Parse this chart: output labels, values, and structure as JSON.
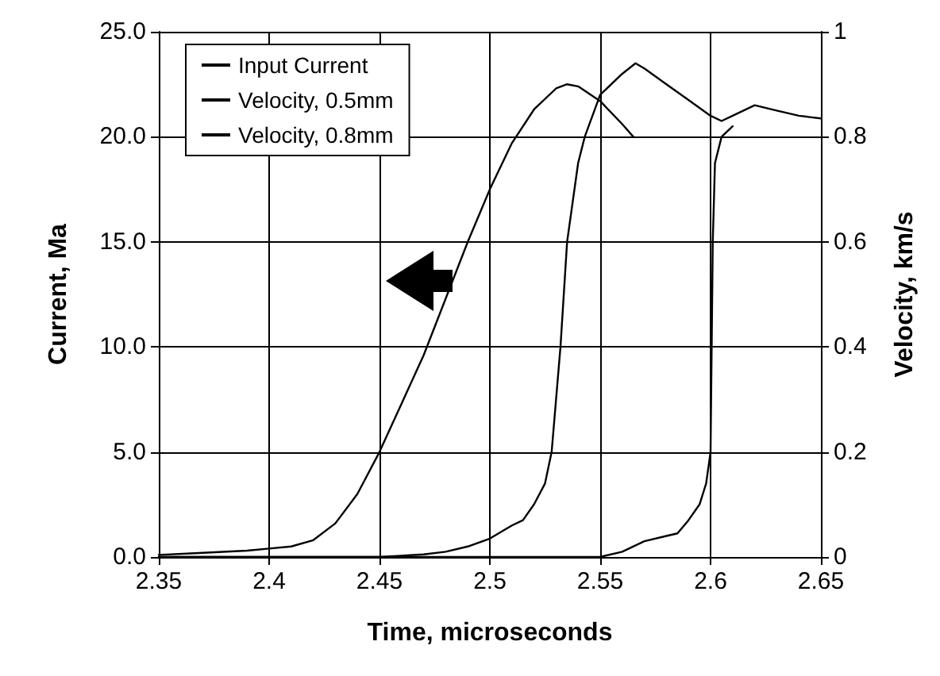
{
  "chart_data": {
    "type": "line",
    "xlabel": "Time, microseconds",
    "ylabel": "Current, Ma",
    "y2label": "Velocity, km/s",
    "series": [
      {
        "name": "Input Current",
        "color": "#000000",
        "x": [
          2.35,
          2.37,
          2.39,
          2.4,
          2.41,
          2.42,
          2.43,
          2.44,
          2.45,
          2.46,
          2.47,
          2.48,
          2.49,
          2.5,
          2.51,
          2.52,
          2.53,
          2.535,
          2.54,
          2.55,
          2.56,
          2.565
        ],
        "values": [
          0.1,
          0.2,
          0.3,
          0.4,
          0.5,
          0.8,
          1.6,
          3.0,
          5.0,
          7.3,
          9.6,
          12.3,
          15.0,
          17.5,
          19.7,
          21.3,
          22.3,
          22.5,
          22.4,
          21.7,
          20.6,
          20.0
        ]
      },
      {
        "name": "Velocity, 0.5mm",
        "color": "#000000",
        "axis": "y2",
        "x": [
          2.35,
          2.4,
          2.45,
          2.47,
          2.48,
          2.49,
          2.5,
          2.51,
          2.515,
          2.52,
          2.525,
          2.528,
          2.53,
          2.532,
          2.535,
          2.54,
          2.543,
          2.55,
          2.56,
          2.566,
          2.57,
          2.58,
          2.59,
          2.6,
          2.605,
          2.61,
          2.62,
          2.63,
          2.64,
          2.65
        ],
        "values": [
          0.0,
          0.0,
          0.0,
          0.005,
          0.01,
          0.02,
          0.035,
          0.06,
          0.07,
          0.1,
          0.14,
          0.2,
          0.3,
          0.4,
          0.6,
          0.75,
          0.8,
          0.88,
          0.92,
          0.94,
          0.93,
          0.9,
          0.87,
          0.84,
          0.83,
          0.84,
          0.86,
          0.85,
          0.84,
          0.835
        ]
      },
      {
        "name": "Velocity, 0.8mm",
        "color": "#000000",
        "axis": "y2",
        "x": [
          2.35,
          2.5,
          2.54,
          2.55,
          2.56,
          2.57,
          2.58,
          2.585,
          2.59,
          2.595,
          2.598,
          2.6,
          2.601,
          2.602,
          2.605,
          2.61
        ],
        "values": [
          0.0,
          0.0,
          0.0,
          0.0,
          0.01,
          0.03,
          0.04,
          0.045,
          0.07,
          0.1,
          0.14,
          0.2,
          0.6,
          0.75,
          0.8,
          0.82
        ]
      }
    ],
    "xlim": [
      2.35,
      2.65
    ],
    "xticks": [
      2.35,
      2.4,
      2.45,
      2.5,
      2.55,
      2.6,
      2.65
    ],
    "ylim": [
      0,
      25
    ],
    "yticks": [
      {
        "value": 0,
        "label": "0.0"
      },
      {
        "value": 5,
        "label": "5.0"
      },
      {
        "value": 10,
        "label": "10.0"
      },
      {
        "value": 15,
        "label": "15.0"
      },
      {
        "value": 20,
        "label": "20.0"
      },
      {
        "value": 25,
        "label": "25.0"
      }
    ],
    "y2lim": [
      0,
      1
    ],
    "y2ticks": [
      0,
      0.2,
      0.4,
      0.6,
      0.8,
      1
    ],
    "grid": true,
    "legend": "top left",
    "marker": "none",
    "line_style": "solid"
  }
}
